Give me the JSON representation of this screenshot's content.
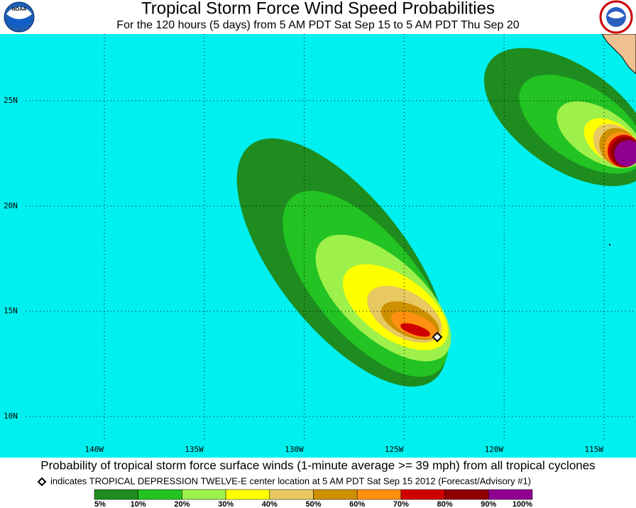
{
  "header": {
    "title": "Tropical Storm Force Wind Speed Probabilities",
    "subtitle": "For the 120 hours (5 days) from 5 AM PDT Sat Sep 15 to 5 AM PDT Thu Sep 20",
    "logo_left": "NOAA"
  },
  "map": {
    "lat_labels": [
      {
        "value": 25,
        "label": "25N"
      },
      {
        "value": 20,
        "label": "20N"
      },
      {
        "value": 15,
        "label": "15N"
      },
      {
        "value": 10,
        "label": "10N"
      }
    ],
    "lon_labels": [
      {
        "value": 140,
        "label": "140W"
      },
      {
        "value": 135,
        "label": "135W"
      },
      {
        "value": 130,
        "label": "130W"
      },
      {
        "value": 125,
        "label": "125W"
      },
      {
        "value": 120,
        "label": "120W"
      },
      {
        "value": 115,
        "label": "115W"
      }
    ]
  },
  "footer": {
    "caption": "Probability of tropical storm force surface winds (1-minute average >= 39 mph) from all tropical cyclones",
    "note": "indicates TROPICAL DEPRESSION TWELVE-E center location at 5 AM PDT Sat Sep 15 2012 (Forecast/Advisory #1)"
  },
  "legend": {
    "ticks": [
      {
        "value": 5,
        "label": "5%"
      },
      {
        "value": 10,
        "label": "10%"
      },
      {
        "value": 20,
        "label": "20%"
      },
      {
        "value": 30,
        "label": "30%"
      },
      {
        "value": 40,
        "label": "40%"
      },
      {
        "value": 50,
        "label": "50%"
      },
      {
        "value": 60,
        "label": "60%"
      },
      {
        "value": 70,
        "label": "70%"
      },
      {
        "value": 80,
        "label": "80%"
      },
      {
        "value": 90,
        "label": "90%"
      },
      {
        "value": 100,
        "label": "100%"
      }
    ],
    "colors": [
      "#1f8c1f",
      "#22c322",
      "#9ef04a",
      "#ffff00",
      "#e8c860",
      "#cc9000",
      "#ff9010",
      "#d00000",
      "#900000",
      "#900090"
    ]
  }
}
